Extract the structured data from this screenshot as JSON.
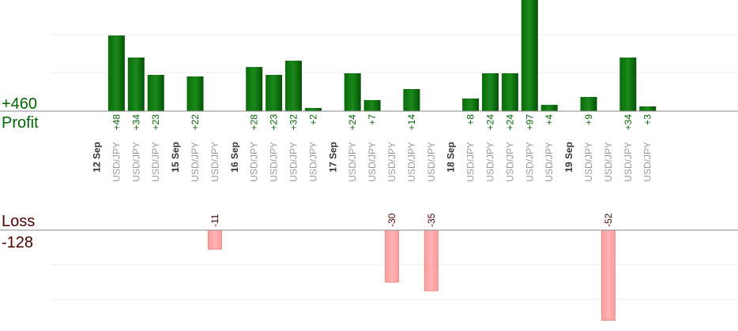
{
  "chart_data": {
    "type": "bar",
    "profit_label": "Profit",
    "loss_label": "Loss",
    "profit_total": "+460",
    "loss_total": "-128",
    "colors": {
      "profit_bar": "#0a6b0a",
      "profit_text": "#006600",
      "loss_bar": "#ffb3b3",
      "loss_text": "#4a0000"
    },
    "days": [
      {
        "label": "12 Sep",
        "trades": [
          {
            "symbol": "USD/JPY",
            "value": 48
          },
          {
            "symbol": "USD/JPY",
            "value": 34
          },
          {
            "symbol": "USD/JPY",
            "value": 23
          }
        ]
      },
      {
        "label": "15 Sep",
        "trades": [
          {
            "symbol": "USD/JPY",
            "value": 22
          },
          {
            "symbol": "USD/JPY",
            "value": -11
          }
        ]
      },
      {
        "label": "16 Sep",
        "trades": [
          {
            "symbol": "USD/JPY",
            "value": 28
          },
          {
            "symbol": "USD/JPY",
            "value": 23
          },
          {
            "symbol": "USD/JPY",
            "value": 32
          },
          {
            "symbol": "USD/JPY",
            "value": 2
          }
        ]
      },
      {
        "label": "17 Sep",
        "trades": [
          {
            "symbol": "USD/JPY",
            "value": 24
          },
          {
            "symbol": "USD/JPY",
            "value": 7
          },
          {
            "symbol": "USD/JPY",
            "value": -30
          },
          {
            "symbol": "USD/JPY",
            "value": 14
          },
          {
            "symbol": "USD/JPY",
            "value": -35
          }
        ]
      },
      {
        "label": "18 Sep",
        "trades": [
          {
            "symbol": "USD/JPY",
            "value": 8
          },
          {
            "symbol": "USD/JPY",
            "value": 24
          },
          {
            "symbol": "USD/JPY",
            "value": 24
          },
          {
            "symbol": "USD/JPY",
            "value": 97
          },
          {
            "symbol": "USD/JPY",
            "value": 4
          }
        ]
      },
      {
        "label": "19 Sep",
        "trades": [
          {
            "symbol": "USD/JPY",
            "value": 9
          },
          {
            "symbol": "USD/JPY",
            "value": -52
          },
          {
            "symbol": "USD/JPY",
            "value": 34
          },
          {
            "symbol": "USD/JPY",
            "value": 3
          }
        ]
      }
    ]
  }
}
